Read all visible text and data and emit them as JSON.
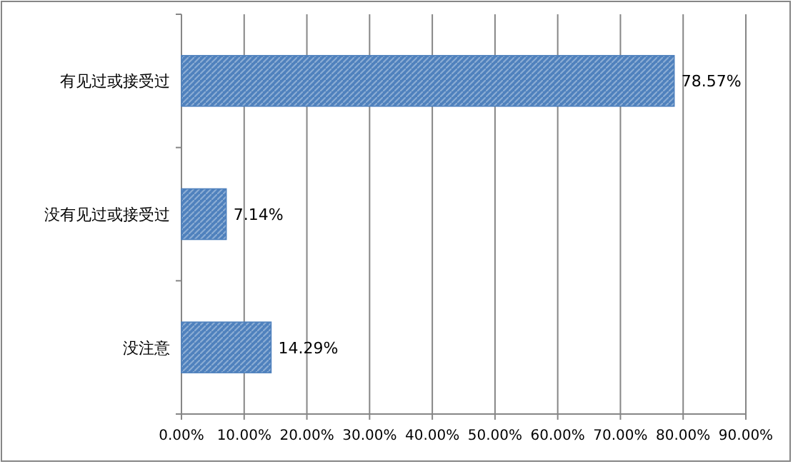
{
  "chart_data": {
    "type": "bar",
    "orientation": "horizontal",
    "categories": [
      "有见过或接受过",
      "没有见过或接受过",
      "没注意"
    ],
    "values": [
      78.57,
      7.14,
      14.29
    ],
    "value_labels": [
      "78.57%",
      "7.14%",
      "14.29%"
    ],
    "color": "#4f81bd",
    "xlim": [
      0,
      90
    ],
    "xticks": [
      {
        "value": 0,
        "label": "0.00%"
      },
      {
        "value": 10,
        "label": "10.00%"
      },
      {
        "value": 20,
        "label": "20.00%"
      },
      {
        "value": 30,
        "label": "30.00%"
      },
      {
        "value": 40,
        "label": "40.00%"
      },
      {
        "value": 50,
        "label": "50.00%"
      },
      {
        "value": 60,
        "label": "60.00%"
      },
      {
        "value": 70,
        "label": "70.00%"
      },
      {
        "value": 80,
        "label": "80.00%"
      },
      {
        "value": 90,
        "label": "90.00%"
      }
    ],
    "grid": "x"
  }
}
